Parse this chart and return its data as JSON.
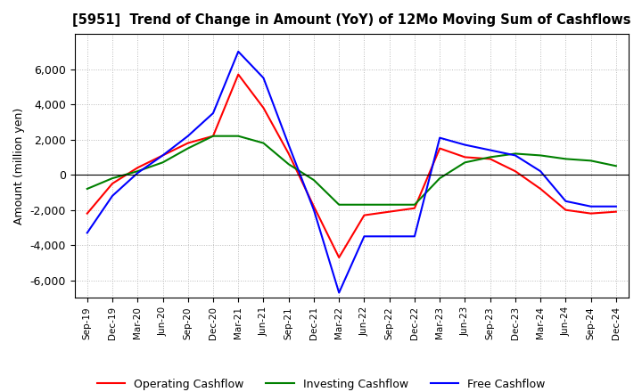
{
  "title": "[5951]  Trend of Change in Amount (YoY) of 12Mo Moving Sum of Cashflows",
  "ylabel": "Amount (million yen)",
  "ylim": [
    -7000,
    8000
  ],
  "yticks": [
    -6000,
    -4000,
    -2000,
    0,
    2000,
    4000,
    6000
  ],
  "x_labels": [
    "Sep-19",
    "Dec-19",
    "Mar-20",
    "Jun-20",
    "Sep-20",
    "Dec-20",
    "Mar-21",
    "Jun-21",
    "Sep-21",
    "Dec-21",
    "Mar-22",
    "Jun-22",
    "Sep-22",
    "Dec-22",
    "Mar-23",
    "Jun-23",
    "Sep-23",
    "Dec-23",
    "Mar-24",
    "Jun-24",
    "Sep-24",
    "Dec-24"
  ],
  "operating": [
    -2200,
    -500,
    400,
    1100,
    1800,
    2200,
    5700,
    3800,
    1200,
    -1800,
    -4700,
    -2300,
    -2100,
    -1900,
    1500,
    1000,
    900,
    200,
    -800,
    -2000,
    -2200,
    -2100
  ],
  "investing": [
    -800,
    -200,
    200,
    700,
    1500,
    2200,
    2200,
    1800,
    600,
    -300,
    -1700,
    -1700,
    -1700,
    -1700,
    -200,
    700,
    1000,
    1200,
    1100,
    900,
    800,
    500
  ],
  "free": [
    -3300,
    -1200,
    100,
    1100,
    2200,
    3500,
    7000,
    5500,
    1700,
    -2000,
    -6700,
    -3500,
    -3500,
    -3500,
    2100,
    1700,
    1400,
    1100,
    200,
    -1500,
    -1800,
    -1800
  ],
  "operating_color": "#ff0000",
  "investing_color": "#008000",
  "free_color": "#0000ff",
  "legend_labels": [
    "Operating Cashflow",
    "Investing Cashflow",
    "Free Cashflow"
  ],
  "background_color": "#ffffff",
  "grid_color": "#bbbbbb"
}
